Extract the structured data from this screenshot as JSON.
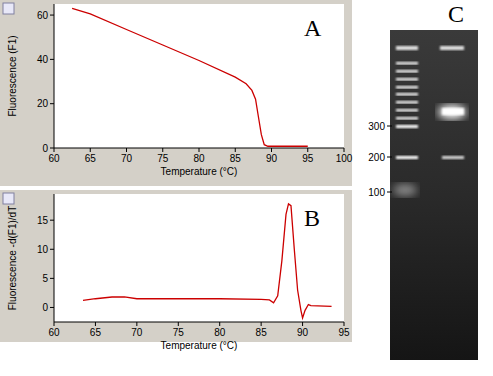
{
  "chart_data": [
    {
      "type": "line",
      "annotations": [
        "A"
      ],
      "x_label": "Temperature (°C)",
      "y_label": "Fluorescence (F1)",
      "x": [
        62.5,
        65,
        70,
        75,
        80,
        85,
        86.5,
        87.3,
        87.8,
        88.2,
        88.6,
        89,
        89.5,
        92,
        95
      ],
      "values": [
        63,
        60.5,
        53.5,
        46.5,
        39.5,
        32,
        29,
        26,
        22,
        14,
        6,
        1.5,
        0.8,
        0.8,
        0.8
      ],
      "xlim": [
        60,
        100
      ],
      "ylim": [
        0,
        65
      ],
      "xticks": [
        60,
        65,
        70,
        75,
        80,
        85,
        90,
        95,
        100
      ],
      "yticks": [
        0,
        20,
        40,
        60
      ],
      "color": "#cc0000",
      "grid": false
    },
    {
      "type": "line",
      "annotations": [
        "B"
      ],
      "x_label": "Temperature (°C)",
      "y_label": "Fluorescence -d(F1)/dT",
      "x": [
        63.5,
        65,
        67,
        68.5,
        70,
        75,
        80,
        85,
        86,
        86.5,
        87,
        87.5,
        88,
        88.3,
        88.6,
        89,
        89.4,
        89.8,
        90,
        90.3,
        90.7,
        91,
        93.5
      ],
      "values": [
        1.2,
        1.5,
        1.8,
        1.8,
        1.5,
        1.5,
        1.5,
        1.4,
        1.3,
        0.8,
        2,
        8,
        16,
        17.8,
        17.5,
        10,
        3,
        -0.5,
        -1.8,
        -0.5,
        0.5,
        0.3,
        0.2
      ],
      "xlim": [
        60,
        95
      ],
      "ylim": [
        -2.5,
        19.5
      ],
      "xticks": [
        60,
        65,
        70,
        75,
        80,
        85,
        90,
        95
      ],
      "yticks": [
        0,
        5,
        10,
        15
      ],
      "color": "#cc0000",
      "grid": false
    }
  ],
  "gel": {
    "label": "C",
    "ladder_labels": [
      300,
      200,
      100
    ]
  }
}
